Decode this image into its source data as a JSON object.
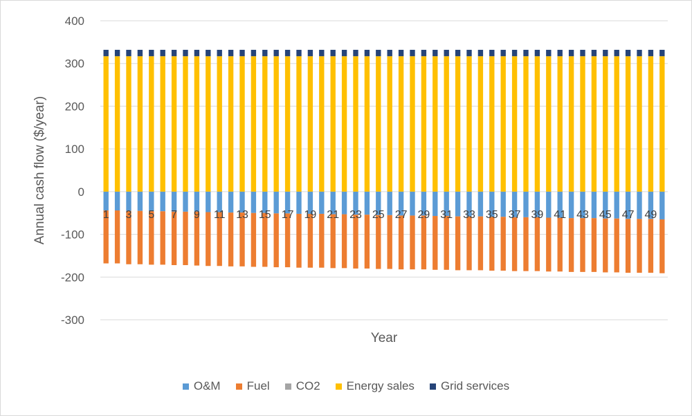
{
  "chart_data": {
    "type": "bar",
    "stacked": true,
    "xlabel": "Year",
    "ylabel": "Annual cash flow ($/year)",
    "ylim": [
      -300,
      400
    ],
    "yticks": [
      400,
      300,
      200,
      100,
      0,
      -100,
      -200,
      -300
    ],
    "categories": [
      1,
      2,
      3,
      4,
      5,
      6,
      7,
      8,
      9,
      10,
      11,
      12,
      13,
      14,
      15,
      16,
      17,
      18,
      19,
      20,
      21,
      22,
      23,
      24,
      25,
      26,
      27,
      28,
      29,
      30,
      31,
      32,
      33,
      34,
      35,
      36,
      37,
      38,
      39,
      40,
      41,
      42,
      43,
      44,
      45,
      46,
      47,
      48,
      49,
      50
    ],
    "visible_category_labels": [
      1,
      3,
      5,
      7,
      9,
      11,
      13,
      15,
      17,
      19,
      21,
      23,
      25,
      27,
      29,
      31,
      33,
      35,
      37,
      39,
      41,
      43,
      45,
      47,
      49
    ],
    "grid": true,
    "legend_position": "bottom",
    "series": [
      {
        "name": "O&M",
        "color": "#5B9BD5",
        "values": [
          -44,
          -44,
          -45,
          -45,
          -46,
          -46,
          -47,
          -47,
          -47,
          -48,
          -48,
          -49,
          -49,
          -50,
          -50,
          -51,
          -51,
          -52,
          -52,
          -52,
          -53,
          -53,
          -54,
          -54,
          -55,
          -55,
          -56,
          -56,
          -56,
          -57,
          -57,
          -58,
          -58,
          -58,
          -59,
          -59,
          -60,
          -60,
          -60,
          -61,
          -61,
          -62,
          -62,
          -62,
          -63,
          -63,
          -64,
          -64,
          -64,
          -65
        ]
      },
      {
        "name": "Fuel",
        "color": "#ED7D31",
        "values": [
          -124,
          -124,
          -125,
          -125,
          -125,
          -125,
          -125,
          -125,
          -126,
          -126,
          -126,
          -126,
          -126,
          -126,
          -126,
          -126,
          -126,
          -126,
          -126,
          -126,
          -126,
          -126,
          -126,
          -126,
          -126,
          -126,
          -126,
          -126,
          -126,
          -126,
          -126,
          -126,
          -126,
          -126,
          -126,
          -126,
          -126,
          -126,
          -126,
          -126,
          -126,
          -126,
          -126,
          -126,
          -126,
          -126,
          -126,
          -126,
          -126,
          -126
        ]
      },
      {
        "name": "CO2",
        "color": "#A5A5A5",
        "values": [
          0,
          0,
          0,
          0,
          0,
          0,
          0,
          0,
          0,
          0,
          0,
          0,
          0,
          0,
          0,
          0,
          0,
          0,
          0,
          0,
          0,
          0,
          0,
          0,
          0,
          0,
          0,
          0,
          0,
          0,
          0,
          0,
          0,
          0,
          0,
          0,
          0,
          0,
          0,
          0,
          0,
          0,
          0,
          0,
          0,
          0,
          0,
          0,
          0,
          0
        ]
      },
      {
        "name": "Energy sales",
        "color": "#FFC000",
        "values": [
          317,
          317,
          317,
          317,
          317,
          317,
          317,
          317,
          317,
          317,
          317,
          317,
          317,
          317,
          317,
          317,
          317,
          317,
          317,
          317,
          317,
          317,
          317,
          317,
          317,
          317,
          317,
          317,
          317,
          317,
          317,
          317,
          317,
          317,
          317,
          317,
          317,
          317,
          317,
          317,
          317,
          317,
          317,
          317,
          317,
          317,
          317,
          317,
          317,
          317
        ]
      },
      {
        "name": "Grid services",
        "color": "#264478",
        "values": [
          15,
          15,
          15,
          15,
          15,
          15,
          15,
          15,
          15,
          15,
          15,
          15,
          15,
          15,
          15,
          15,
          15,
          15,
          15,
          15,
          15,
          15,
          15,
          15,
          15,
          15,
          15,
          15,
          15,
          15,
          15,
          15,
          15,
          15,
          15,
          15,
          15,
          15,
          15,
          15,
          15,
          15,
          15,
          15,
          15,
          15,
          15,
          15,
          15,
          15
        ]
      }
    ]
  },
  "legend": [
    {
      "label": "O&M",
      "color": "#5B9BD5"
    },
    {
      "label": "Fuel",
      "color": "#ED7D31"
    },
    {
      "label": "CO2",
      "color": "#A5A5A5"
    },
    {
      "label": "Energy sales",
      "color": "#FFC000"
    },
    {
      "label": "Grid services",
      "color": "#264478"
    }
  ]
}
